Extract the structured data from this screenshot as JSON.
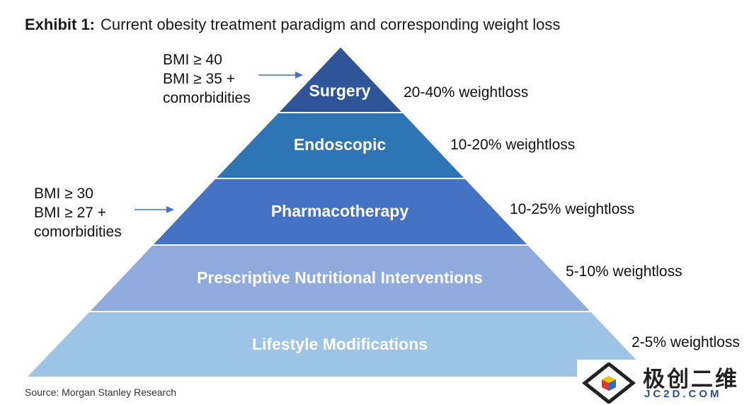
{
  "title": {
    "prefix": "Exhibit 1:",
    "text": "Current obesity treatment paradigm and corresponding weight loss"
  },
  "tiers": [
    {
      "label": "Surgery",
      "weightloss": "20-40% weightloss",
      "color": "#2e5597"
    },
    {
      "label": "Endoscopic",
      "weightloss": "10-20% weightloss",
      "color": "#2e75b6"
    },
    {
      "label": "Pharmacotherapy",
      "weightloss": "10-25% weightloss",
      "color": "#4472c4"
    },
    {
      "label": "Prescriptive Nutritional Interventions",
      "weightloss": "5-10% weightloss",
      "color": "#8faadc"
    },
    {
      "label": "Lifestyle Modifications",
      "weightloss": "2-5% weightloss",
      "color": "#9dc3e6"
    }
  ],
  "annotations": {
    "surgery": [
      "BMI ≥ 40",
      "BMI ≥ 35 +",
      "comorbidities"
    ],
    "pharmacotherapy": [
      "BMI ≥ 30",
      "BMI ≥ 27 +",
      "comorbidities"
    ]
  },
  "source": "Source: Morgan Stanley Research",
  "watermark": {
    "name": "极创二维",
    "url": "JC2D.COM"
  },
  "arrow_color": "#4472c4"
}
